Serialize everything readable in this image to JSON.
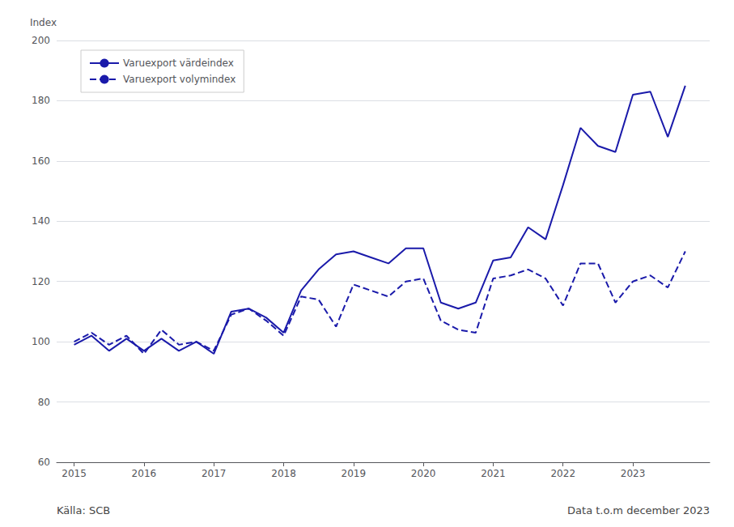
{
  "chart_data": {
    "type": "line",
    "ylabel": "Index",
    "annotations": [
      "Källa: SCB",
      "Data t.o.m december 2023"
    ],
    "x": [
      2015.0,
      2015.25,
      2015.5,
      2015.75,
      2016.0,
      2016.25,
      2016.5,
      2016.75,
      2017.0,
      2017.25,
      2017.5,
      2017.75,
      2018.0,
      2018.25,
      2018.5,
      2018.75,
      2019.0,
      2019.25,
      2019.5,
      2019.75,
      2020.0,
      2020.25,
      2020.5,
      2020.75,
      2021.0,
      2021.25,
      2021.5,
      2021.75,
      2022.0,
      2022.25,
      2022.5,
      2022.75,
      2023.0,
      2023.25,
      2023.5,
      2023.75
    ],
    "series": [
      {
        "name": "Varuexport värdeindex",
        "color": "#1a1aaa",
        "line_style": "solid",
        "values": [
          99,
          102,
          97,
          101,
          97,
          101,
          97,
          100,
          96,
          110,
          111,
          108,
          103,
          117,
          124,
          129,
          130,
          128,
          126,
          131,
          131,
          113,
          111,
          113,
          127,
          128,
          138,
          134,
          152,
          171,
          165,
          163,
          182,
          183,
          168,
          185
        ]
      },
      {
        "name": "Varuexport volymindex",
        "color": "#1a1aaa",
        "line_style": "dashed",
        "values": [
          100,
          103,
          99,
          102,
          96,
          104,
          99,
          100,
          97,
          109,
          111,
          107,
          102,
          115,
          114,
          105,
          119,
          117,
          115,
          120,
          121,
          107,
          104,
          103,
          121,
          122,
          124,
          121,
          112,
          126,
          126,
          113,
          120,
          122,
          118,
          130
        ]
      }
    ],
    "xlim": [
      2014.75,
      2024.1
    ],
    "xticks": [
      2015,
      2016,
      2017,
      2018,
      2019,
      2020,
      2021,
      2022,
      2023
    ],
    "ylim": [
      60,
      200
    ],
    "yticks": [
      60,
      80,
      100,
      120,
      140,
      160,
      180,
      200
    ],
    "grid": true,
    "legend": "upper left"
  }
}
